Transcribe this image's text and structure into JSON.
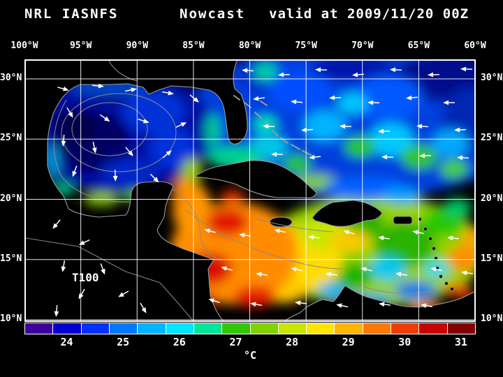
{
  "header": {
    "system": "NRL IASNFS",
    "product": "Nowcast",
    "valid": "valid at 2009/11/20 00Z"
  },
  "map": {
    "depth_label": "T100",
    "lon_ticks": [
      "100°W",
      "95°W",
      "90°W",
      "85°W",
      "80°W",
      "75°W",
      "70°W",
      "65°W",
      "60°W"
    ],
    "lat_ticks": [
      "30°N",
      "25°N",
      "20°N",
      "15°N",
      "10°N"
    ],
    "field": [
      [
        480,
        85,
        250,
        115,
        "#0040dd"
      ],
      [
        600,
        25,
        70,
        35,
        "#000f8c"
      ],
      [
        470,
        12,
        60,
        20,
        "#0018aa"
      ],
      [
        638,
        88,
        40,
        48,
        "#0028b4"
      ],
      [
        330,
        25,
        26,
        20,
        "#0028c8"
      ],
      [
        395,
        45,
        45,
        28,
        "#0050ff"
      ],
      [
        520,
        55,
        50,
        33,
        "#0058ff"
      ],
      [
        430,
        95,
        30,
        22,
        "#00b4ff"
      ],
      [
        525,
        115,
        32,
        24,
        "#00c8ff"
      ],
      [
        350,
        125,
        26,
        18,
        "#00c8e6"
      ],
      [
        610,
        120,
        26,
        20,
        "#00aaff"
      ],
      [
        470,
        63,
        22,
        15,
        "#00c8ff"
      ],
      [
        480,
        125,
        22,
        15,
        "#28c800"
      ],
      [
        565,
        140,
        26,
        17,
        "#32c800"
      ],
      [
        615,
        157,
        20,
        13,
        "#46d200"
      ],
      [
        390,
        150,
        20,
        13,
        "#28c800"
      ],
      [
        345,
        93,
        16,
        12,
        "#00e6b4"
      ],
      [
        345,
        18,
        17,
        13,
        "#00d2a0"
      ],
      [
        135,
        100,
        135,
        92,
        "#0008a0"
      ],
      [
        160,
        45,
        70,
        20,
        "#000882"
      ],
      [
        95,
        118,
        55,
        45,
        "#000564"
      ],
      [
        72,
        95,
        32,
        26,
        "#00034b"
      ],
      [
        185,
        75,
        45,
        32,
        "#0030d8"
      ],
      [
        212,
        128,
        33,
        28,
        "#0032dc"
      ],
      [
        150,
        162,
        42,
        20,
        "#0028c8"
      ],
      [
        120,
        40,
        55,
        12,
        "#0046cd"
      ],
      [
        40,
        148,
        10,
        28,
        "#0096dc"
      ],
      [
        55,
        186,
        16,
        9,
        "#00c88c"
      ],
      [
        110,
        200,
        26,
        10,
        "#8cc800"
      ],
      [
        158,
        196,
        18,
        8,
        "#5ac800"
      ],
      [
        240,
        160,
        15,
        18,
        "#96c800"
      ],
      [
        270,
        102,
        11,
        24,
        "#00c896"
      ],
      [
        300,
        140,
        40,
        15,
        "#00d28c"
      ],
      [
        332,
        163,
        28,
        11,
        "#64d200"
      ],
      [
        418,
        176,
        30,
        11,
        "#82d200"
      ],
      [
        500,
        275,
        160,
        80,
        "#96d200"
      ],
      [
        545,
        265,
        45,
        33,
        "#2cb400"
      ],
      [
        480,
        233,
        35,
        24,
        "#28b400"
      ],
      [
        600,
        233,
        30,
        21,
        "#28c800"
      ],
      [
        470,
        310,
        28,
        19,
        "#14b400"
      ],
      [
        620,
        213,
        20,
        14,
        "#00c864"
      ],
      [
        400,
        290,
        55,
        42,
        "#ffdc00"
      ],
      [
        430,
        250,
        35,
        24,
        "#c8e600"
      ],
      [
        370,
        330,
        35,
        19,
        "#ffc800"
      ],
      [
        465,
        260,
        30,
        14,
        "#ffc800"
      ],
      [
        370,
        248,
        25,
        11,
        "#ffd200"
      ],
      [
        300,
        278,
        92,
        73,
        "#ff8c00"
      ],
      [
        240,
        215,
        28,
        38,
        "#ff9600"
      ],
      [
        225,
        193,
        13,
        24,
        "#ff8c00"
      ],
      [
        290,
        233,
        30,
        19,
        "#e11400"
      ],
      [
        265,
        300,
        32,
        23,
        "#dc0a00"
      ],
      [
        330,
        340,
        30,
        15,
        "#e61e00"
      ],
      [
        255,
        345,
        22,
        11,
        "#d20000"
      ],
      [
        298,
        196,
        17,
        9,
        "#e62800"
      ],
      [
        520,
        300,
        26,
        17,
        "#00c8f0"
      ],
      [
        560,
        331,
        30,
        13,
        "#0078f0"
      ],
      [
        470,
        346,
        24,
        11,
        "#0050e6"
      ],
      [
        440,
        330,
        20,
        11,
        "#00b4f0"
      ],
      [
        590,
        300,
        18,
        11,
        "#00dcf0"
      ],
      [
        505,
        346,
        18,
        9,
        "#00a0f0"
      ],
      [
        630,
        285,
        24,
        19,
        "#ff8c00"
      ],
      [
        644,
        255,
        18,
        13,
        "#ffa000"
      ],
      [
        620,
        330,
        20,
        9,
        "#f05000"
      ],
      [
        640,
        346,
        16,
        7,
        "#dc1400"
      ],
      [
        575,
        356,
        25,
        8,
        "#ff7800"
      ],
      [
        488,
        185,
        60,
        16,
        "#0064ff"
      ],
      [
        540,
        195,
        28,
        11,
        "#00a0ff"
      ]
    ],
    "arrows": [
      [
        55,
        42,
        15
      ],
      [
        105,
        38,
        5
      ],
      [
        152,
        44,
        -12
      ],
      [
        205,
        48,
        10
      ],
      [
        243,
        56,
        40
      ],
      [
        65,
        76,
        60
      ],
      [
        115,
        84,
        35
      ],
      [
        170,
        88,
        18
      ],
      [
        224,
        94,
        -25
      ],
      [
        56,
        116,
        95
      ],
      [
        100,
        126,
        78
      ],
      [
        150,
        132,
        50
      ],
      [
        204,
        136,
        -40
      ],
      [
        72,
        160,
        110
      ],
      [
        130,
        166,
        88
      ],
      [
        186,
        170,
        45
      ],
      [
        320,
        16,
        184
      ],
      [
        372,
        22,
        178
      ],
      [
        425,
        15,
        182
      ],
      [
        478,
        22,
        175
      ],
      [
        532,
        15,
        183
      ],
      [
        586,
        22,
        178
      ],
      [
        633,
        14,
        182
      ],
      [
        336,
        56,
        172
      ],
      [
        390,
        61,
        185
      ],
      [
        445,
        55,
        178
      ],
      [
        500,
        62,
        182
      ],
      [
        555,
        55,
        175
      ],
      [
        608,
        62,
        180
      ],
      [
        350,
        96,
        183
      ],
      [
        405,
        101,
        176
      ],
      [
        460,
        96,
        182
      ],
      [
        515,
        103,
        178
      ],
      [
        570,
        96,
        184
      ],
      [
        624,
        101,
        177
      ],
      [
        362,
        136,
        180
      ],
      [
        416,
        140,
        174
      ],
      [
        520,
        140,
        182
      ],
      [
        574,
        138,
        178
      ],
      [
        628,
        141,
        183
      ],
      [
        266,
        246,
        195
      ],
      [
        316,
        252,
        188
      ],
      [
        366,
        246,
        192
      ],
      [
        415,
        255,
        185
      ],
      [
        465,
        248,
        195
      ],
      [
        515,
        256,
        188
      ],
      [
        564,
        248,
        192
      ],
      [
        614,
        256,
        186
      ],
      [
        290,
        300,
        195
      ],
      [
        340,
        308,
        188
      ],
      [
        390,
        301,
        192
      ],
      [
        440,
        308,
        186
      ],
      [
        490,
        301,
        194
      ],
      [
        540,
        308,
        188
      ],
      [
        590,
        301,
        192
      ],
      [
        634,
        306,
        187
      ],
      [
        272,
        346,
        198
      ],
      [
        332,
        351,
        190
      ],
      [
        396,
        349,
        186
      ],
      [
        455,
        353,
        192
      ],
      [
        516,
        351,
        188
      ],
      [
        576,
        353,
        190
      ],
      [
        46,
        236,
        130
      ],
      [
        86,
        262,
        155
      ],
      [
        56,
        296,
        100
      ],
      [
        112,
        300,
        70
      ],
      [
        82,
        336,
        120
      ],
      [
        142,
        336,
        150
      ],
      [
        46,
        360,
        95
      ],
      [
        170,
        356,
        60
      ]
    ]
  },
  "colorbar": {
    "unit": "°C",
    "ticks": [
      "24",
      "25",
      "26",
      "27",
      "28",
      "29",
      "30",
      "31"
    ],
    "min": 24,
    "max": 31,
    "segments": [
      "#3c00a0",
      "#0000d2",
      "#0032ff",
      "#0078ff",
      "#00b4ff",
      "#00e6ff",
      "#00e696",
      "#32c800",
      "#82d200",
      "#c8e600",
      "#ffe600",
      "#ffb400",
      "#ff7800",
      "#f03c00",
      "#c80000",
      "#820000"
    ]
  },
  "colors": {
    "background": "#000000",
    "grid": "#ffffff",
    "coastline": "#9a9a9a",
    "land": "#000000",
    "text": "#ffffff"
  }
}
